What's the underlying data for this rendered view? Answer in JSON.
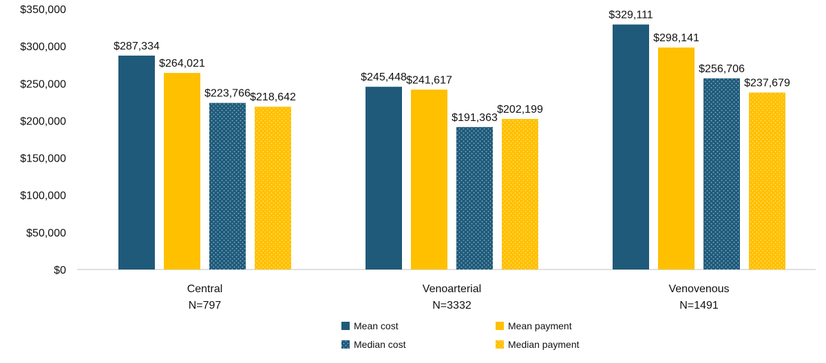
{
  "chart_data": {
    "type": "bar",
    "title": "",
    "xlabel": "",
    "ylabel": "",
    "ylim": [
      0,
      350000
    ],
    "yticks": [
      "$0",
      "$50,000",
      "$100,000",
      "$150,000",
      "$200,000",
      "$250,000",
      "$300,000",
      "$350,000"
    ],
    "ytick_values": [
      0,
      50000,
      100000,
      150000,
      200000,
      250000,
      300000,
      350000
    ],
    "grid": false,
    "legend_position": "bottom",
    "categories": [
      {
        "name": "Central",
        "n": "N=797"
      },
      {
        "name": "Venoarterial",
        "n": "N=3332"
      },
      {
        "name": "Venovenous",
        "n": "N=1491"
      }
    ],
    "series": [
      {
        "name": "Mean cost",
        "color": "#1f5a7a",
        "pattern": "solid",
        "values": [
          287334,
          245448,
          329111
        ],
        "labels": [
          "$287,334",
          "$245,448",
          "$329,111"
        ]
      },
      {
        "name": "Mean payment",
        "color": "#ffc000",
        "pattern": "solid",
        "values": [
          264021,
          241617,
          298141
        ],
        "labels": [
          "$264,021",
          "$241,617",
          "$298,141"
        ]
      },
      {
        "name": "Median cost",
        "color": "#1f5a7a",
        "pattern": "dotted",
        "values": [
          223766,
          191363,
          256706
        ],
        "labels": [
          "$223,766",
          "$191,363",
          "$256,706"
        ]
      },
      {
        "name": "Median payment",
        "color": "#ffc000",
        "pattern": "dotted",
        "values": [
          218642,
          202199,
          237679
        ],
        "labels": [
          "$218,642",
          "$202,199",
          "$237,679"
        ]
      }
    ]
  }
}
